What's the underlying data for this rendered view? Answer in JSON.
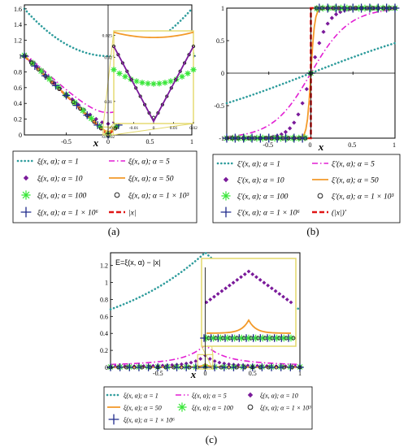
{
  "colors": {
    "teal": "#2e9c9c",
    "magenta": "#e21fd3",
    "purple": "#7a1a9a",
    "orange": "#f39a2a",
    "green": "#39e639",
    "black": "#222222",
    "navy": "#1f2a8c",
    "red": "#e01515",
    "zoom": "#e3d86a"
  },
  "chart_data": [
    {
      "type": "line",
      "panel_label": "(a)",
      "xlabel": "x",
      "ylabel": "",
      "xlim": [
        -1,
        1
      ],
      "ylim": [
        0,
        1.65
      ],
      "xticks": [
        "-0.5",
        "0",
        "0.5",
        "1"
      ],
      "yticks": [
        "0",
        "0.2",
        "0.4",
        "0.6",
        "0.8",
        "1",
        "1.2",
        "1.4",
        "1.6"
      ],
      "inset": {
        "xlim": [
          -0.02,
          0.02
        ],
        "ylim": [
          0.005,
          0.026
        ],
        "xticks": [
          "-0.02",
          "-0.01",
          "0",
          "0.01",
          "0.02"
        ],
        "yticks": [
          "0.01",
          "0.02",
          "0.025"
        ]
      },
      "legend": [
        {
          "label": "ξ(x, α); α = 1",
          "style": "dot",
          "color": "teal"
        },
        {
          "label": "ξ(x, α); α = 5",
          "style": "dashdot",
          "color": "magenta"
        },
        {
          "label": "ξ(x, α); α = 10",
          "style": "diamond",
          "color": "purple"
        },
        {
          "label": "ξ(x, α); α = 50",
          "style": "line",
          "color": "orange"
        },
        {
          "label": "ξ(x, α); α = 100",
          "style": "star",
          "color": "green"
        },
        {
          "label": "ξ(x, α); α = 1 × 10³",
          "style": "circle",
          "color": "black"
        },
        {
          "label": "ξ(x, α); α = 1 × 10⁶",
          "style": "plus",
          "color": "navy"
        },
        {
          "label": "|x|",
          "style": "dashred",
          "color": "red"
        }
      ]
    },
    {
      "type": "line",
      "panel_label": "(b)",
      "xlabel": "x",
      "ylabel": "",
      "xlim": [
        -1,
        1
      ],
      "ylim": [
        -1,
        1
      ],
      "xticks": [
        "-0.5",
        "0",
        "0.5",
        "1"
      ],
      "yticks": [
        "-1",
        "-0.5",
        "0",
        "0.5",
        "1"
      ],
      "legend": [
        {
          "label": "ξ′(x, α); α = 1",
          "style": "dot",
          "color": "teal"
        },
        {
          "label": "ξ′(x, α); α = 5",
          "style": "dashdot",
          "color": "magenta"
        },
        {
          "label": "ξ′(x, α); α = 10",
          "style": "diamond",
          "color": "purple"
        },
        {
          "label": "ξ′(x, α); α = 50",
          "style": "line",
          "color": "orange"
        },
        {
          "label": "ξ′(x, α); α = 100",
          "style": "star",
          "color": "green"
        },
        {
          "label": "ξ′(x, α); α = 1 × 10³",
          "style": "circle",
          "color": "black"
        },
        {
          "label": "ξ′(x, α); α = 1 × 10⁶",
          "style": "plus",
          "color": "navy"
        },
        {
          "label": "(|x|)′",
          "style": "dashred",
          "color": "red"
        }
      ]
    },
    {
      "type": "line",
      "panel_label": "(c)",
      "title": "E=ξ(x, α) − |x|",
      "xlabel": "x",
      "ylabel": "",
      "xlim": [
        -1,
        1
      ],
      "ylim": [
        0,
        1.35
      ],
      "xticks": [
        "-0.5",
        "0",
        "0.5",
        "1"
      ],
      "yticks": [
        "0",
        "0.2",
        "0.4",
        "0.6",
        "0.8",
        "1",
        "1.2"
      ],
      "legend": [
        {
          "label": "ξ(x, α); α = 1",
          "style": "dot",
          "color": "teal"
        },
        {
          "label": "ξ(x, α); α = 5",
          "style": "dashdot",
          "color": "magenta"
        },
        {
          "label": "ξ(x, α); α = 10",
          "style": "diamond",
          "color": "purple"
        },
        {
          "label": "ξ(x, α); α = 50",
          "style": "line",
          "color": "orange"
        },
        {
          "label": "ξ(x, α); α = 100",
          "style": "star",
          "color": "green"
        },
        {
          "label": "ξ(x, α); α = 1 × 10³",
          "style": "circle",
          "color": "black"
        },
        {
          "label": "ξ(x, α); α = 1 × 10⁶",
          "style": "plus",
          "color": "navy"
        }
      ]
    }
  ]
}
